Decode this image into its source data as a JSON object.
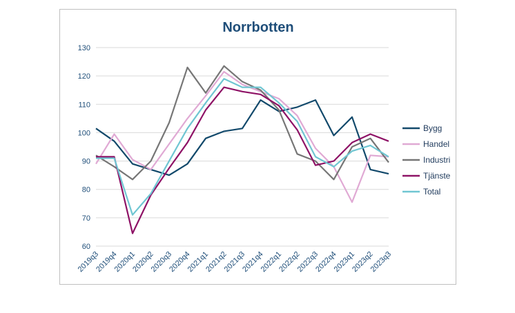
{
  "chart_data": {
    "type": "line",
    "title": "Norrbotten",
    "xlabel": "",
    "ylabel": "",
    "ylim": [
      60,
      130
    ],
    "yticks": [
      60,
      70,
      80,
      90,
      100,
      110,
      120,
      130
    ],
    "grid": "horizontal",
    "legend_position": "right",
    "categories": [
      "2019q3",
      "2019q4",
      "2020q1",
      "2020q2",
      "2020q3",
      "2020q4",
      "2021q1",
      "2021q2",
      "2021q3",
      "2021q4",
      "2022q1",
      "2022q2",
      "2022q3",
      "2022q4",
      "2023q1",
      "2023q2",
      "2023q3"
    ],
    "series": [
      {
        "name": "Bygg",
        "color": "#12496b",
        "values": [
          101.5,
          97,
          89,
          87,
          85,
          89,
          98,
          100.5,
          101.5,
          111.5,
          107.5,
          109,
          111.5,
          99,
          105.5,
          87,
          85.5
        ]
      },
      {
        "name": "Handel",
        "color": "#e0a9d4",
        "values": [
          89,
          99.5,
          90.5,
          87,
          96,
          105,
          113,
          121.5,
          117,
          114.5,
          112,
          106,
          94.5,
          88,
          75.5,
          92,
          91.5
        ]
      },
      {
        "name": "Industri",
        "color": "#767676",
        "values": [
          92,
          88,
          83.5,
          90,
          103.5,
          123,
          114,
          123.5,
          118,
          115,
          108,
          92.5,
          90,
          83.5,
          95,
          98,
          89.5
        ]
      },
      {
        "name": "Tjänste",
        "color": "#8e1266",
        "values": [
          91.5,
          91.5,
          64.5,
          78,
          87.5,
          96.5,
          108,
          116,
          114.5,
          113.5,
          109.5,
          101,
          88.5,
          90,
          96.5,
          99.5,
          97
        ]
      },
      {
        "name": "Total",
        "color": "#6fc6d2",
        "values": [
          91,
          91,
          71,
          78.5,
          90,
          101.5,
          110.5,
          119,
          116,
          116,
          110.5,
          104,
          91.5,
          88,
          93.5,
          95.5,
          91.5
        ]
      }
    ]
  }
}
